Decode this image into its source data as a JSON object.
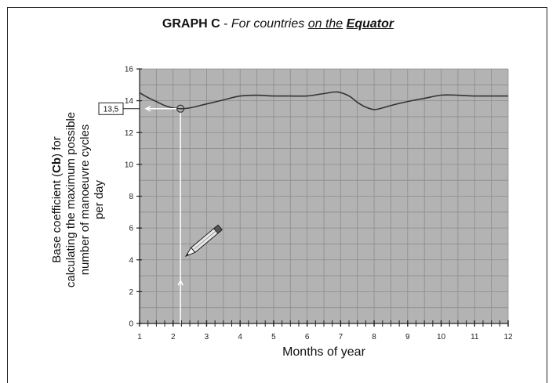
{
  "title": {
    "bold": "GRAPH C",
    "sep": " - ",
    "italic_prefix": "For countries ",
    "underlined": "on the",
    "space": " ",
    "emphasis": "Equator"
  },
  "ylabel": {
    "line1_pre": "Base coefficient (",
    "line1_bold": "Cb",
    "line1_post": ") for",
    "line2": "calculating the maximum possible",
    "line3": "number of manoeuvre cycles",
    "line4": "per day"
  },
  "xlabel": "Months of year",
  "callout": {
    "label": "13,5",
    "x": 2.22,
    "y": 13.5
  },
  "colors": {
    "plot_bg": "#b3b3b3",
    "grid": "#8c8c8c",
    "line": "#333333",
    "guide": "#ffffff"
  },
  "chart_data": {
    "type": "line",
    "title": "GRAPH C - For countries on the Equator",
    "xlabel": "Months of year",
    "ylabel": "Base coefficient (Cb) for calculating the maximum possible number of manoeuvre cycles per day",
    "xlim": [
      1,
      12
    ],
    "ylim": [
      0,
      16
    ],
    "xticks": [
      1,
      2,
      3,
      4,
      5,
      6,
      7,
      8,
      9,
      10,
      11,
      12
    ],
    "yticks": [
      0,
      2,
      4,
      6,
      8,
      10,
      12,
      14,
      16
    ],
    "grid": true,
    "series": [
      {
        "x": [
          1,
          1.25,
          1.5,
          1.75,
          2,
          2.25,
          2.5,
          3,
          3.5,
          4,
          4.5,
          5,
          5.5,
          6,
          6.5,
          6.9,
          7.25,
          7.5,
          7.75,
          8,
          8.25,
          8.5,
          9,
          9.5,
          10,
          10.5,
          11,
          11.5,
          12
        ],
        "y": [
          14.5,
          14.2,
          13.95,
          13.7,
          13.55,
          13.5,
          13.55,
          13.8,
          14.05,
          14.3,
          14.35,
          14.3,
          14.3,
          14.3,
          14.45,
          14.55,
          14.3,
          13.9,
          13.6,
          13.45,
          13.55,
          13.7,
          13.95,
          14.15,
          14.35,
          14.35,
          14.3,
          14.3,
          14.3
        ]
      }
    ]
  }
}
